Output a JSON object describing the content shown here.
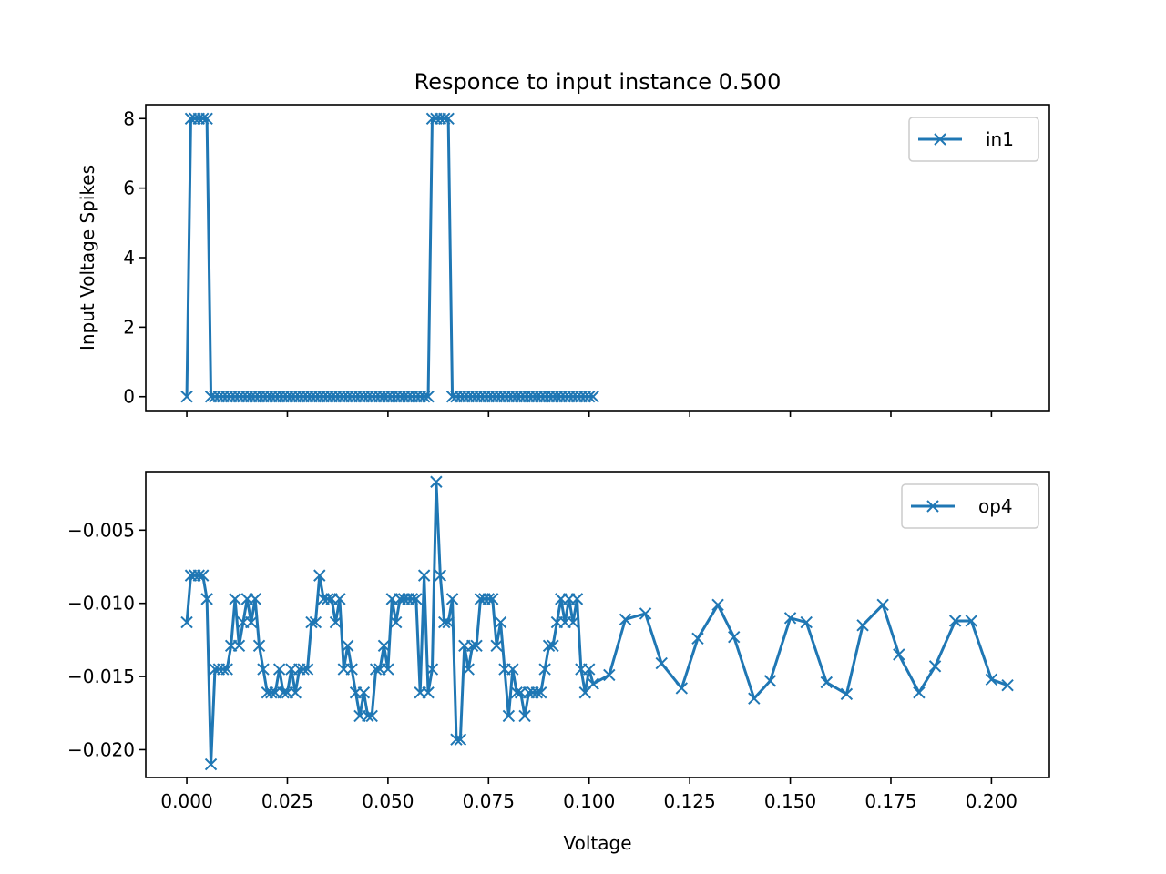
{
  "chart_data": [
    {
      "type": "line",
      "title": "Responce to input instance 0.500",
      "xlabel": "",
      "ylabel": "Input Voltage Spikes",
      "xlim": [
        -0.0102,
        0.2144
      ],
      "ylim": [
        -0.4,
        8.4
      ],
      "x_ticks": [
        0.0,
        0.025,
        0.05,
        0.075,
        0.1,
        0.125,
        0.15,
        0.175,
        0.2
      ],
      "x_tick_labels_shown": false,
      "y_ticks": [
        0,
        2,
        4,
        6,
        8
      ],
      "y_tick_labels": [
        "0",
        "2",
        "4",
        "6",
        "8"
      ],
      "grid": false,
      "legend_position": "top-right",
      "color": "#1f77b4",
      "marker": "x",
      "series": [
        {
          "name": "in1",
          "x": [
            0.0,
            0.001,
            0.002,
            0.003,
            0.004,
            0.005,
            0.006,
            0.007,
            0.008,
            0.009,
            0.01,
            0.011,
            0.012,
            0.013,
            0.014,
            0.015,
            0.016,
            0.017,
            0.018,
            0.019,
            0.02,
            0.021,
            0.022,
            0.023,
            0.024,
            0.025,
            0.026,
            0.027,
            0.028,
            0.029,
            0.03,
            0.031,
            0.032,
            0.033,
            0.034,
            0.035,
            0.036,
            0.037,
            0.038,
            0.039,
            0.04,
            0.041,
            0.042,
            0.043,
            0.044,
            0.045,
            0.046,
            0.047,
            0.048,
            0.049,
            0.05,
            0.051,
            0.052,
            0.053,
            0.054,
            0.055,
            0.056,
            0.057,
            0.058,
            0.059,
            0.06,
            0.061,
            0.062,
            0.063,
            0.064,
            0.065,
            0.066,
            0.067,
            0.068,
            0.069,
            0.07,
            0.071,
            0.072,
            0.073,
            0.074,
            0.075,
            0.076,
            0.077,
            0.078,
            0.079,
            0.08,
            0.081,
            0.082,
            0.083,
            0.084,
            0.085,
            0.086,
            0.087,
            0.088,
            0.089,
            0.09,
            0.091,
            0.092,
            0.093,
            0.094,
            0.095,
            0.096,
            0.097,
            0.098,
            0.099,
            0.1,
            0.101
          ],
          "values": [
            0,
            8,
            8,
            8,
            8,
            8,
            0,
            0,
            0,
            0,
            0,
            0,
            0,
            0,
            0,
            0,
            0,
            0,
            0,
            0,
            0,
            0,
            0,
            0,
            0,
            0,
            0,
            0,
            0,
            0,
            0,
            0,
            0,
            0,
            0,
            0,
            0,
            0,
            0,
            0,
            0,
            0,
            0,
            0,
            0,
            0,
            0,
            0,
            0,
            0,
            0,
            0,
            0,
            0,
            0,
            0,
            0,
            0,
            0,
            0,
            0,
            8,
            8,
            8,
            8,
            8,
            0,
            0,
            0,
            0,
            0,
            0,
            0,
            0,
            0,
            0,
            0,
            0,
            0,
            0,
            0,
            0,
            0,
            0,
            0,
            0,
            0,
            0,
            0,
            0,
            0,
            0,
            0,
            0,
            0,
            0,
            0,
            0,
            0,
            0,
            0,
            0
          ]
        }
      ]
    },
    {
      "type": "line",
      "title": "",
      "xlabel": "Voltage",
      "ylabel": "",
      "xlim": [
        -0.0102,
        0.2144
      ],
      "ylim": [
        -0.0219,
        -0.001
      ],
      "x_ticks": [
        0.0,
        0.025,
        0.05,
        0.075,
        0.1,
        0.125,
        0.15,
        0.175,
        0.2
      ],
      "x_tick_labels": [
        "0.000",
        "0.025",
        "0.050",
        "0.075",
        "0.100",
        "0.125",
        "0.150",
        "0.175",
        "0.200"
      ],
      "y_ticks": [
        -0.005,
        -0.01,
        -0.015,
        -0.02
      ],
      "y_tick_labels": [
        "−0.005",
        "−0.010",
        "−0.015",
        "−0.020"
      ],
      "grid": false,
      "legend_position": "top-right",
      "color": "#1f77b4",
      "marker": "x",
      "series": [
        {
          "name": "op4",
          "x": [
            0.0,
            0.001,
            0.002,
            0.003,
            0.004,
            0.005,
            0.006,
            0.007,
            0.008,
            0.009,
            0.01,
            0.011,
            0.012,
            0.013,
            0.014,
            0.015,
            0.016,
            0.017,
            0.018,
            0.019,
            0.02,
            0.021,
            0.022,
            0.023,
            0.024,
            0.025,
            0.026,
            0.027,
            0.028,
            0.029,
            0.03,
            0.031,
            0.032,
            0.033,
            0.034,
            0.035,
            0.036,
            0.037,
            0.038,
            0.039,
            0.04,
            0.041,
            0.042,
            0.043,
            0.044,
            0.045,
            0.046,
            0.047,
            0.048,
            0.049,
            0.05,
            0.051,
            0.052,
            0.053,
            0.054,
            0.055,
            0.056,
            0.057,
            0.058,
            0.059,
            0.06,
            0.061,
            0.062,
            0.063,
            0.064,
            0.065,
            0.066,
            0.067,
            0.068,
            0.069,
            0.07,
            0.071,
            0.072,
            0.073,
            0.074,
            0.075,
            0.076,
            0.077,
            0.078,
            0.079,
            0.08,
            0.081,
            0.082,
            0.083,
            0.084,
            0.085,
            0.086,
            0.087,
            0.088,
            0.089,
            0.09,
            0.091,
            0.092,
            0.093,
            0.094,
            0.095,
            0.096,
            0.097,
            0.098,
            0.099,
            0.1,
            0.101,
            0.105,
            0.109,
            0.114,
            0.118,
            0.123,
            0.127,
            0.132,
            0.136,
            0.141,
            0.145,
            0.15,
            0.154,
            0.159,
            0.164,
            0.168,
            0.173,
            0.177,
            0.182,
            0.186,
            0.191,
            0.195,
            0.2,
            0.204
          ],
          "values": [
            -0.0113,
            -0.0081,
            -0.0081,
            -0.0081,
            -0.0081,
            -0.0097,
            -0.021,
            -0.0145,
            -0.0145,
            -0.0145,
            -0.0145,
            -0.0129,
            -0.0097,
            -0.0129,
            -0.0113,
            -0.0097,
            -0.0113,
            -0.0097,
            -0.0129,
            -0.0145,
            -0.0161,
            -0.0161,
            -0.0161,
            -0.0145,
            -0.0161,
            -0.0161,
            -0.0145,
            -0.0161,
            -0.0145,
            -0.0145,
            -0.0145,
            -0.0113,
            -0.0113,
            -0.0081,
            -0.0097,
            -0.0097,
            -0.0097,
            -0.0113,
            -0.0097,
            -0.0145,
            -0.0129,
            -0.0145,
            -0.0161,
            -0.0177,
            -0.0161,
            -0.0177,
            -0.0177,
            -0.0145,
            -0.0145,
            -0.0129,
            -0.0145,
            -0.0097,
            -0.0113,
            -0.0097,
            -0.0097,
            -0.0097,
            -0.0097,
            -0.0097,
            -0.0161,
            -0.0081,
            -0.0161,
            -0.0145,
            -0.0017,
            -0.0081,
            -0.0113,
            -0.0113,
            -0.0097,
            -0.0193,
            -0.0193,
            -0.0129,
            -0.0145,
            -0.0129,
            -0.0129,
            -0.0097,
            -0.0097,
            -0.0097,
            -0.0097,
            -0.0129,
            -0.0113,
            -0.0145,
            -0.0177,
            -0.0145,
            -0.0161,
            -0.0161,
            -0.0177,
            -0.0161,
            -0.0161,
            -0.0161,
            -0.0161,
            -0.0145,
            -0.0129,
            -0.0129,
            -0.0113,
            -0.0097,
            -0.0113,
            -0.0097,
            -0.0113,
            -0.0097,
            -0.0145,
            -0.0161,
            -0.0145,
            -0.0155,
            -0.0149,
            -0.0111,
            -0.0107,
            -0.0141,
            -0.0158,
            -0.0124,
            -0.0101,
            -0.0123,
            -0.0165,
            -0.0153,
            -0.011,
            -0.0113,
            -0.0154,
            -0.0162,
            -0.0115,
            -0.0101,
            -0.0135,
            -0.0161,
            -0.0143,
            -0.0112,
            -0.0112,
            -0.0152,
            -0.0156
          ]
        }
      ]
    }
  ]
}
